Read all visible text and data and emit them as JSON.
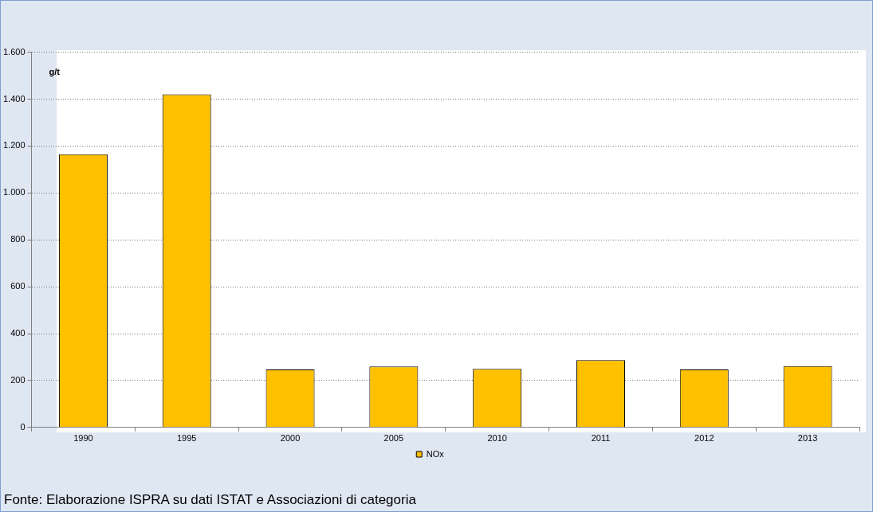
{
  "chart_data": {
    "type": "bar",
    "ylabel": "g/t",
    "categories": [
      "1990",
      "1995",
      "2000",
      "2005",
      "2010",
      "2011",
      "2012",
      "2013"
    ],
    "series": [
      {
        "name": "NOx",
        "color": "#ffc000",
        "values": [
          1165,
          1420,
          247,
          260,
          250,
          287,
          247,
          262
        ]
      }
    ],
    "ylim": [
      0,
      1600
    ],
    "yticks": [
      0,
      {
        "value": 200,
        "label": "200"
      },
      {
        "value": 400,
        "label": "400"
      },
      {
        "value": 600,
        "label": "600"
      },
      {
        "value": 800,
        "label": "800"
      },
      {
        "value": 1000,
        "label": "1.000"
      },
      {
        "value": 1200,
        "label": "1.200"
      },
      {
        "value": 1400,
        "label": "1.400"
      },
      {
        "value": 1600,
        "label": "1.600"
      }
    ],
    "grid": "y",
    "legend": "bottom",
    "annotations": [
      "Fonte:  Elaborazione ISPRA su dati ISTAT e Associazioni di categoria"
    ]
  }
}
